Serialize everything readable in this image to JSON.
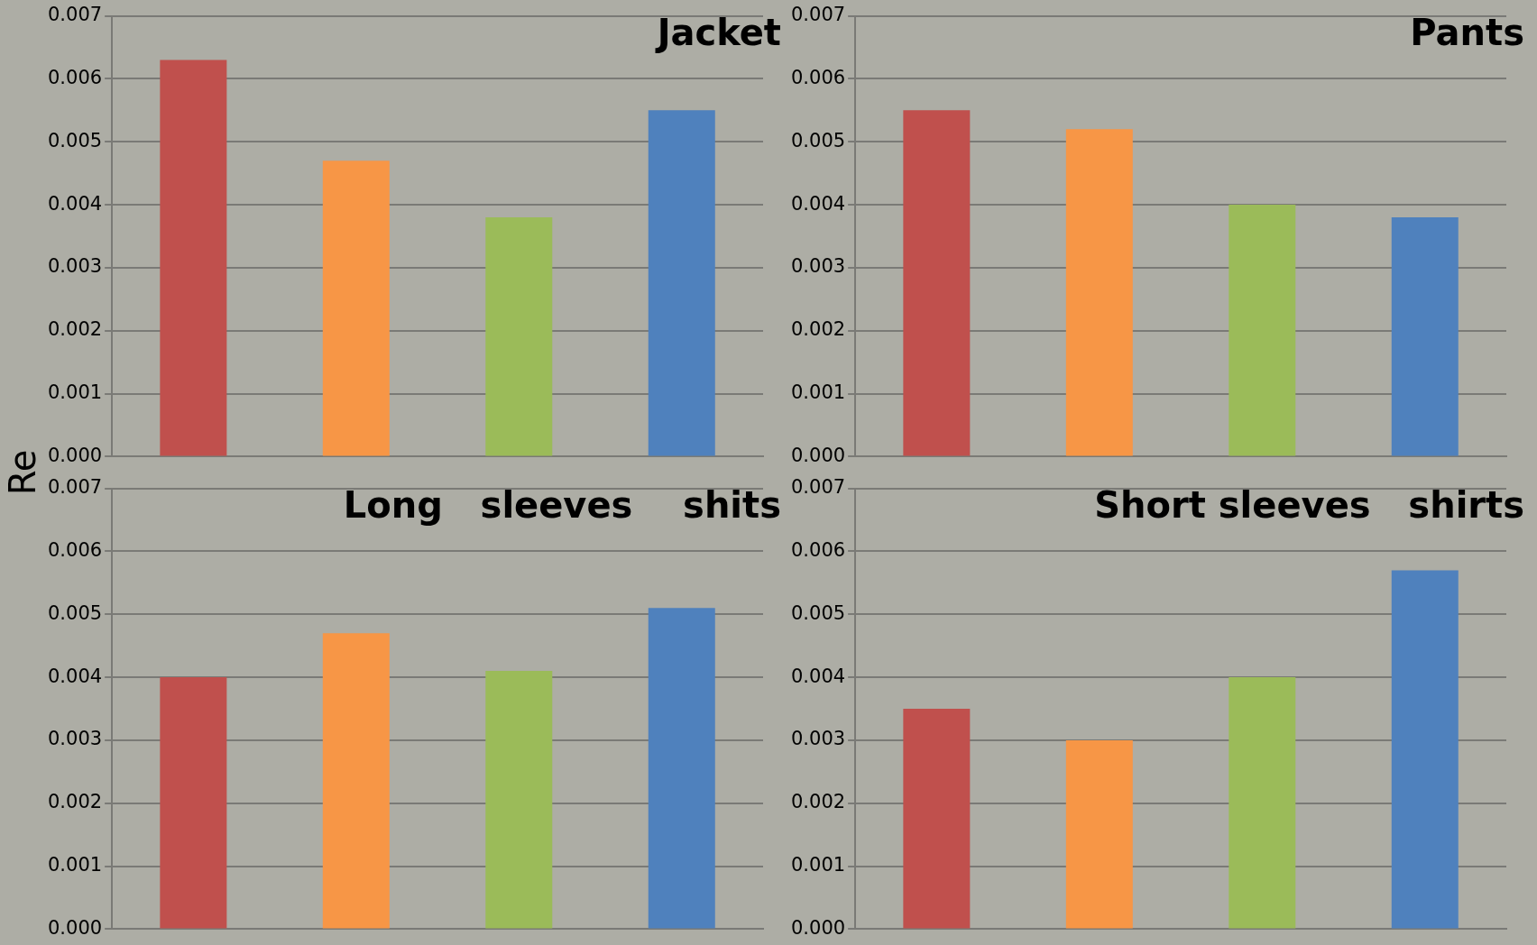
{
  "chart_data": [
    {
      "type": "bar",
      "title": "Jacket",
      "ylabel": "Re",
      "categories": [
        null,
        null,
        null,
        null
      ],
      "values": [
        0.0063,
        0.0047,
        0.0038,
        0.0055
      ],
      "colors": [
        "#c0504d",
        "#f79646",
        "#9bbb59",
        "#4f81bd"
      ],
      "ylim": [
        0,
        0.007
      ],
      "yticks": [
        {
          "value": 0,
          "label": "0.000"
        },
        {
          "value": 0.001,
          "label": "0.001"
        },
        {
          "value": 0.002,
          "label": "0.002"
        },
        {
          "value": 0.003,
          "label": "0.003"
        },
        {
          "value": 0.004,
          "label": "0.004"
        },
        {
          "value": 0.005,
          "label": "0.005"
        },
        {
          "value": 0.006,
          "label": "0.006"
        },
        {
          "value": 0.007,
          "label": "0.007"
        }
      ],
      "grid": "y",
      "tick_labels": "y",
      "legend": false
    },
    {
      "type": "bar",
      "title": "Pants",
      "categories": [
        null,
        null,
        null,
        null
      ],
      "values": [
        0.0055,
        0.0052,
        0.004,
        0.0038
      ],
      "colors": [
        "#c0504d",
        "#f79646",
        "#9bbb59",
        "#4f81bd"
      ],
      "ylim": [
        0,
        0.007
      ],
      "yticks": [
        {
          "value": 0,
          "label": "0.000"
        },
        {
          "value": 0.001,
          "label": "0.001"
        },
        {
          "value": 0.002,
          "label": "0.002"
        },
        {
          "value": 0.003,
          "label": "0.003"
        },
        {
          "value": 0.004,
          "label": "0.004"
        },
        {
          "value": 0.005,
          "label": "0.005"
        },
        {
          "value": 0.006,
          "label": "0.006"
        },
        {
          "value": 0.007,
          "label": "0.007"
        }
      ],
      "grid": "y",
      "tick_labels": "y",
      "legend": false
    },
    {
      "type": "bar",
      "title": "Long   sleeves    shits",
      "categories": [
        null,
        null,
        null,
        null
      ],
      "values": [
        0.004,
        0.0047,
        0.0041,
        0.0051
      ],
      "colors": [
        "#c0504d",
        "#f79646",
        "#9bbb59",
        "#4f81bd"
      ],
      "ylim": [
        0,
        0.007
      ],
      "yticks": [
        {
          "value": 0,
          "label": "0.000"
        },
        {
          "value": 0.001,
          "label": "0.001"
        },
        {
          "value": 0.002,
          "label": "0.002"
        },
        {
          "value": 0.003,
          "label": "0.003"
        },
        {
          "value": 0.004,
          "label": "0.004"
        },
        {
          "value": 0.005,
          "label": "0.005"
        },
        {
          "value": 0.006,
          "label": "0.006"
        },
        {
          "value": 0.007,
          "label": "0.007"
        }
      ],
      "grid": "y",
      "tick_labels": "y",
      "legend": false
    },
    {
      "type": "bar",
      "title": "Short sleeves   shirts",
      "categories": [
        null,
        null,
        null,
        null
      ],
      "values": [
        0.0035,
        0.003,
        0.004,
        0.0057
      ],
      "colors": [
        "#c0504d",
        "#f79646",
        "#9bbb59",
        "#4f81bd"
      ],
      "ylim": [
        0,
        0.007
      ],
      "yticks": [
        {
          "value": 0,
          "label": "0.000"
        },
        {
          "value": 0.001,
          "label": "0.001"
        },
        {
          "value": 0.002,
          "label": "0.002"
        },
        {
          "value": 0.003,
          "label": "0.003"
        },
        {
          "value": 0.004,
          "label": "0.004"
        },
        {
          "value": 0.005,
          "label": "0.005"
        },
        {
          "value": 0.006,
          "label": "0.006"
        },
        {
          "value": 0.007,
          "label": "0.007"
        }
      ],
      "grid": "y",
      "tick_labels": "y",
      "legend": false
    }
  ]
}
